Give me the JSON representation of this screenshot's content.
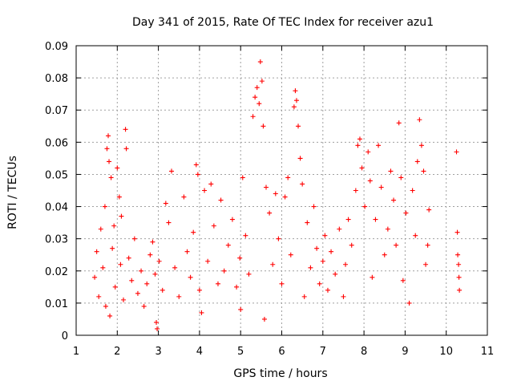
{
  "chart_data": {
    "type": "scatter",
    "title": "Day 341 of 2015, Rate Of TEC Index for receiver azu1",
    "xlabel": "GPS time / hours",
    "ylabel": "ROTI / TECUs",
    "xlim": [
      1,
      11
    ],
    "ylim": [
      0,
      0.09
    ],
    "xticks": [
      1,
      2,
      3,
      4,
      5,
      6,
      7,
      8,
      9,
      10,
      11
    ],
    "yticks": [
      0,
      0.01,
      0.02,
      0.03,
      0.04,
      0.05,
      0.06,
      0.07,
      0.08,
      0.09
    ],
    "xtick_labels": [
      "1",
      "2",
      "3",
      "4",
      "5",
      "6",
      "7",
      "8",
      "9",
      "10",
      "11"
    ],
    "ytick_labels": [
      "0",
      "0.01",
      "0.02",
      "0.03",
      "0.04",
      "0.05",
      "0.06",
      "0.07",
      "0.08",
      "0.09"
    ],
    "grid": true,
    "marker": "+",
    "marker_color": "#ff0000",
    "series": [
      {
        "name": "ROTI",
        "points": [
          [
            1.45,
            0.018
          ],
          [
            1.5,
            0.026
          ],
          [
            1.55,
            0.012
          ],
          [
            1.6,
            0.033
          ],
          [
            1.65,
            0.021
          ],
          [
            1.7,
            0.04
          ],
          [
            1.72,
            0.009
          ],
          [
            1.75,
            0.058
          ],
          [
            1.78,
            0.062
          ],
          [
            1.8,
            0.054
          ],
          [
            1.82,
            0.006
          ],
          [
            1.85,
            0.049
          ],
          [
            1.88,
            0.027
          ],
          [
            1.92,
            0.034
          ],
          [
            1.95,
            0.015
          ],
          [
            2.0,
            0.052
          ],
          [
            2.05,
            0.043
          ],
          [
            2.08,
            0.022
          ],
          [
            2.1,
            0.037
          ],
          [
            2.15,
            0.011
          ],
          [
            2.2,
            0.064
          ],
          [
            2.22,
            0.058
          ],
          [
            2.28,
            0.024
          ],
          [
            2.35,
            0.017
          ],
          [
            2.42,
            0.03
          ],
          [
            2.5,
            0.013
          ],
          [
            2.58,
            0.02
          ],
          [
            2.65,
            0.009
          ],
          [
            2.72,
            0.016
          ],
          [
            2.8,
            0.025
          ],
          [
            2.86,
            0.029
          ],
          [
            2.92,
            0.019
          ],
          [
            2.95,
            0.004
          ],
          [
            2.97,
            0.002
          ],
          [
            3.02,
            0.023
          ],
          [
            3.1,
            0.014
          ],
          [
            3.18,
            0.041
          ],
          [
            3.25,
            0.035
          ],
          [
            3.32,
            0.051
          ],
          [
            3.4,
            0.021
          ],
          [
            3.5,
            0.012
          ],
          [
            3.62,
            0.043
          ],
          [
            3.7,
            0.026
          ],
          [
            3.78,
            0.018
          ],
          [
            3.85,
            0.032
          ],
          [
            3.92,
            0.053
          ],
          [
            3.96,
            0.05
          ],
          [
            4.0,
            0.014
          ],
          [
            4.05,
            0.007
          ],
          [
            4.12,
            0.045
          ],
          [
            4.2,
            0.023
          ],
          [
            4.28,
            0.047
          ],
          [
            4.35,
            0.034
          ],
          [
            4.45,
            0.016
          ],
          [
            4.52,
            0.042
          ],
          [
            4.6,
            0.02
          ],
          [
            4.7,
            0.028
          ],
          [
            4.8,
            0.036
          ],
          [
            4.9,
            0.015
          ],
          [
            4.98,
            0.024
          ],
          [
            5.0,
            0.008
          ],
          [
            5.05,
            0.049
          ],
          [
            5.12,
            0.031
          ],
          [
            5.2,
            0.019
          ],
          [
            5.3,
            0.068
          ],
          [
            5.35,
            0.074
          ],
          [
            5.4,
            0.077
          ],
          [
            5.45,
            0.072
          ],
          [
            5.48,
            0.085
          ],
          [
            5.52,
            0.079
          ],
          [
            5.55,
            0.065
          ],
          [
            5.58,
            0.005
          ],
          [
            5.62,
            0.046
          ],
          [
            5.7,
            0.038
          ],
          [
            5.78,
            0.022
          ],
          [
            5.85,
            0.044
          ],
          [
            5.92,
            0.03
          ],
          [
            6.0,
            0.016
          ],
          [
            6.08,
            0.043
          ],
          [
            6.15,
            0.049
          ],
          [
            6.22,
            0.025
          ],
          [
            6.3,
            0.071
          ],
          [
            6.33,
            0.076
          ],
          [
            6.36,
            0.073
          ],
          [
            6.4,
            0.065
          ],
          [
            6.45,
            0.055
          ],
          [
            6.5,
            0.047
          ],
          [
            6.55,
            0.012
          ],
          [
            6.62,
            0.035
          ],
          [
            6.7,
            0.021
          ],
          [
            6.78,
            0.04
          ],
          [
            6.85,
            0.027
          ],
          [
            6.92,
            0.016
          ],
          [
            7.0,
            0.023
          ],
          [
            7.05,
            0.031
          ],
          [
            7.12,
            0.014
          ],
          [
            7.2,
            0.026
          ],
          [
            7.3,
            0.019
          ],
          [
            7.4,
            0.033
          ],
          [
            7.5,
            0.012
          ],
          [
            7.55,
            0.022
          ],
          [
            7.62,
            0.036
          ],
          [
            7.7,
            0.028
          ],
          [
            7.8,
            0.045
          ],
          [
            7.85,
            0.059
          ],
          [
            7.9,
            0.061
          ],
          [
            7.95,
            0.052
          ],
          [
            8.02,
            0.04
          ],
          [
            8.1,
            0.057
          ],
          [
            8.15,
            0.048
          ],
          [
            8.2,
            0.018
          ],
          [
            8.28,
            0.036
          ],
          [
            8.35,
            0.059
          ],
          [
            8.42,
            0.046
          ],
          [
            8.5,
            0.025
          ],
          [
            8.58,
            0.033
          ],
          [
            8.65,
            0.051
          ],
          [
            8.72,
            0.042
          ],
          [
            8.78,
            0.028
          ],
          [
            8.85,
            0.066
          ],
          [
            8.9,
            0.049
          ],
          [
            8.95,
            0.017
          ],
          [
            9.02,
            0.038
          ],
          [
            9.1,
            0.01
          ],
          [
            9.18,
            0.045
          ],
          [
            9.25,
            0.031
          ],
          [
            9.3,
            0.054
          ],
          [
            9.35,
            0.067
          ],
          [
            9.4,
            0.059
          ],
          [
            9.45,
            0.051
          ],
          [
            9.5,
            0.022
          ],
          [
            9.55,
            0.028
          ],
          [
            9.58,
            0.039
          ],
          [
            10.25,
            0.057
          ],
          [
            10.27,
            0.032
          ],
          [
            10.28,
            0.025
          ],
          [
            10.3,
            0.022
          ],
          [
            10.31,
            0.018
          ],
          [
            10.32,
            0.014
          ]
        ]
      }
    ]
  }
}
